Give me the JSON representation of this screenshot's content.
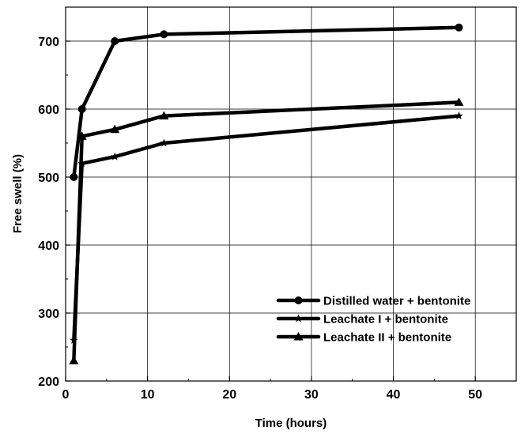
{
  "chart_data": {
    "type": "line",
    "title": "",
    "xlabel": "Time (hours)",
    "ylabel": "Free swell (%)",
    "xlim": [
      0,
      55
    ],
    "ylim": [
      200,
      750
    ],
    "x_ticks": [
      0,
      10,
      20,
      30,
      40,
      50
    ],
    "y_ticks": [
      200,
      300,
      400,
      500,
      600,
      700
    ],
    "grid": true,
    "legend_position": "lower-right",
    "series": [
      {
        "name": "Distilled water + bentonite",
        "marker": "circle",
        "color": "#000000",
        "x": [
          1,
          2,
          6,
          12,
          48
        ],
        "y": [
          500,
          600,
          700,
          710,
          720
        ]
      },
      {
        "name": "Leachate I + bentonite",
        "marker": "star",
        "color": "#000000",
        "x": [
          1,
          2,
          6,
          12,
          48
        ],
        "y": [
          260,
          520,
          530,
          550,
          590
        ]
      },
      {
        "name": "Leachate II + bentonite",
        "marker": "triangle",
        "color": "#000000",
        "x": [
          1,
          2,
          6,
          12,
          48
        ],
        "y": [
          230,
          560,
          570,
          590,
          610
        ]
      }
    ]
  }
}
